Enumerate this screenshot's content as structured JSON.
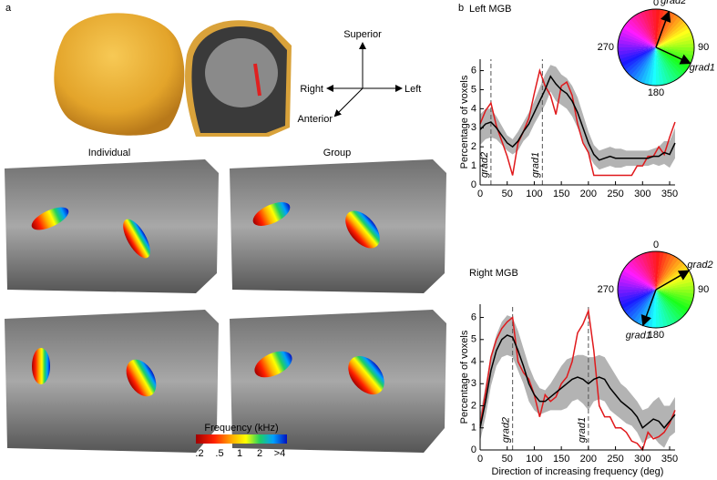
{
  "panel_a": {
    "label": "a",
    "axes": {
      "up": "Superior",
      "left": "Right",
      "right": "Left",
      "front": "Anterior"
    },
    "columns": [
      "Individual",
      "Group"
    ],
    "colorbar": {
      "title": "Frequency (kHz)",
      "labels": [
        ".2",
        ".5",
        "1",
        "2",
        ">4"
      ]
    }
  },
  "panel_b_label": "b",
  "chart_data": [
    {
      "type": "line",
      "title": "Left MGB",
      "xlabel": "Direction of increasing frequency (deg)",
      "ylabel": "Percentage of voxels",
      "x": [
        0,
        10,
        20,
        30,
        40,
        50,
        60,
        70,
        80,
        90,
        100,
        110,
        120,
        130,
        140,
        150,
        160,
        170,
        180,
        190,
        200,
        210,
        220,
        230,
        240,
        250,
        260,
        270,
        280,
        290,
        300,
        310,
        320,
        330,
        340,
        350,
        360
      ],
      "series": [
        {
          "color": "#e0191c",
          "values": [
            3.2,
            3.9,
            4.3,
            3.1,
            2.3,
            1.5,
            0.5,
            2.2,
            2.8,
            3.5,
            4.8,
            6.0,
            5.2,
            4.7,
            3.7,
            5.2,
            5.4,
            4.7,
            3.2,
            2.2,
            1.7,
            0.5,
            0.5,
            0.5,
            0.5,
            0.5,
            0.5,
            0.5,
            0.5,
            1.0,
            1.0,
            1.5,
            1.5,
            2.0,
            1.6,
            2.5,
            3.3
          ]
        },
        {
          "color": "#000000",
          "values": [
            2.9,
            3.2,
            3.3,
            3.0,
            2.6,
            2.2,
            2.0,
            2.3,
            2.8,
            3.2,
            3.8,
            4.4,
            5.0,
            5.7,
            5.3,
            5.0,
            4.8,
            4.4,
            3.8,
            3.0,
            2.2,
            1.6,
            1.3,
            1.4,
            1.5,
            1.4,
            1.4,
            1.4,
            1.4,
            1.4,
            1.4,
            1.4,
            1.5,
            1.5,
            1.7,
            1.6,
            2.2
          ]
        }
      ],
      "band": {
        "color": "#b3b3b3",
        "upper": [
          3.7,
          4.0,
          4.0,
          3.6,
          3.1,
          2.6,
          2.4,
          2.8,
          3.3,
          3.8,
          4.4,
          5.1,
          5.8,
          6.3,
          6.2,
          5.8,
          5.6,
          5.2,
          4.6,
          3.7,
          2.8,
          2.1,
          1.8,
          1.9,
          2.0,
          1.9,
          1.9,
          1.8,
          1.8,
          1.8,
          1.8,
          1.8,
          1.9,
          2.0,
          2.3,
          2.3,
          3.0
        ],
        "lower": [
          2.1,
          2.4,
          2.5,
          2.4,
          2.1,
          1.8,
          1.6,
          1.8,
          2.3,
          2.6,
          3.2,
          3.7,
          4.2,
          4.9,
          4.4,
          4.2,
          4.0,
          3.6,
          3.0,
          2.3,
          1.6,
          1.1,
          0.8,
          0.9,
          1.0,
          0.9,
          0.9,
          1.0,
          1.0,
          1.0,
          1.0,
          1.0,
          1.1,
          1.0,
          1.1,
          0.9,
          1.4
        ]
      },
      "vlines": [
        {
          "x": 20,
          "label": "grad2"
        },
        {
          "x": 115,
          "label": "grad1"
        }
      ],
      "xlim": [
        0,
        360
      ],
      "xticks": [
        0,
        50,
        100,
        150,
        200,
        250,
        300,
        350
      ],
      "ylim": [
        0,
        6.6
      ],
      "yticks": [
        0,
        1,
        2,
        3,
        4,
        5,
        6
      ],
      "wheel": {
        "labels": [
          "0",
          "90",
          "180",
          "270"
        ],
        "grads": [
          {
            "label": "grad1",
            "angle": 115
          },
          {
            "label": "grad2",
            "angle": 20
          }
        ]
      }
    },
    {
      "type": "line",
      "title": "Right MGB",
      "xlabel": "Direction of increasing frequency (deg)",
      "ylabel": "Percentage of voxels",
      "x": [
        0,
        10,
        20,
        30,
        40,
        50,
        60,
        70,
        80,
        90,
        100,
        110,
        120,
        130,
        140,
        150,
        160,
        170,
        180,
        190,
        200,
        210,
        220,
        230,
        240,
        250,
        260,
        270,
        280,
        290,
        300,
        310,
        320,
        330,
        340,
        350,
        360
      ],
      "series": [
        {
          "color": "#e0191c",
          "values": [
            1.1,
            2.6,
            4.2,
            5.0,
            5.5,
            5.8,
            6.0,
            4.0,
            3.5,
            3.2,
            2.5,
            1.5,
            2.5,
            2.2,
            2.4,
            3.0,
            3.3,
            4.0,
            5.3,
            5.7,
            6.3,
            4.5,
            2.0,
            1.5,
            1.5,
            1.0,
            1.0,
            0.8,
            0.4,
            0.3,
            0.0,
            0.8,
            0.5,
            0.6,
            0.8,
            1.2,
            1.8
          ]
        },
        {
          "color": "#000000",
          "values": [
            1.0,
            2.2,
            3.6,
            4.5,
            5.0,
            5.2,
            5.1,
            4.5,
            3.8,
            3.0,
            2.5,
            2.2,
            2.2,
            2.4,
            2.6,
            2.8,
            3.0,
            3.2,
            3.3,
            3.2,
            3.0,
            3.2,
            3.3,
            3.2,
            2.8,
            2.5,
            2.2,
            2.0,
            1.8,
            1.5,
            1.0,
            1.2,
            1.4,
            1.3,
            1.0,
            1.3,
            1.6
          ]
        }
      ],
      "band": {
        "color": "#b3b3b3",
        "upper": [
          1.6,
          2.9,
          4.3,
          5.2,
          5.8,
          6.1,
          6.0,
          5.4,
          4.6,
          3.8,
          3.2,
          2.8,
          2.7,
          3.0,
          3.4,
          3.8,
          4.1,
          4.2,
          4.3,
          4.3,
          4.2,
          4.2,
          4.3,
          4.2,
          3.8,
          3.4,
          3.0,
          2.8,
          2.5,
          2.2,
          1.8,
          1.9,
          2.2,
          2.4,
          2.0,
          2.0,
          2.4
        ],
        "lower": [
          0.4,
          1.5,
          2.9,
          3.8,
          4.2,
          4.3,
          4.2,
          3.6,
          3.0,
          2.2,
          1.8,
          1.6,
          1.7,
          1.8,
          1.8,
          1.8,
          1.9,
          2.2,
          2.3,
          2.1,
          1.8,
          2.2,
          2.3,
          2.2,
          1.8,
          1.6,
          1.4,
          1.2,
          1.1,
          0.8,
          0.3,
          0.5,
          0.6,
          0.3,
          0.1,
          0.6,
          0.8
        ]
      },
      "vlines": [
        {
          "x": 60,
          "label": "grad2"
        },
        {
          "x": 200,
          "label": "grad1"
        }
      ],
      "xlim": [
        0,
        360
      ],
      "xticks": [
        0,
        50,
        100,
        150,
        200,
        250,
        300,
        350
      ],
      "ylim": [
        0,
        6.6
      ],
      "yticks": [
        0,
        1,
        2,
        3,
        4,
        5,
        6
      ],
      "wheel": {
        "labels": [
          "0",
          "90",
          "180",
          "270"
        ],
        "grads": [
          {
            "label": "grad1",
            "angle": 200
          },
          {
            "label": "grad2",
            "angle": 60
          }
        ]
      }
    }
  ]
}
